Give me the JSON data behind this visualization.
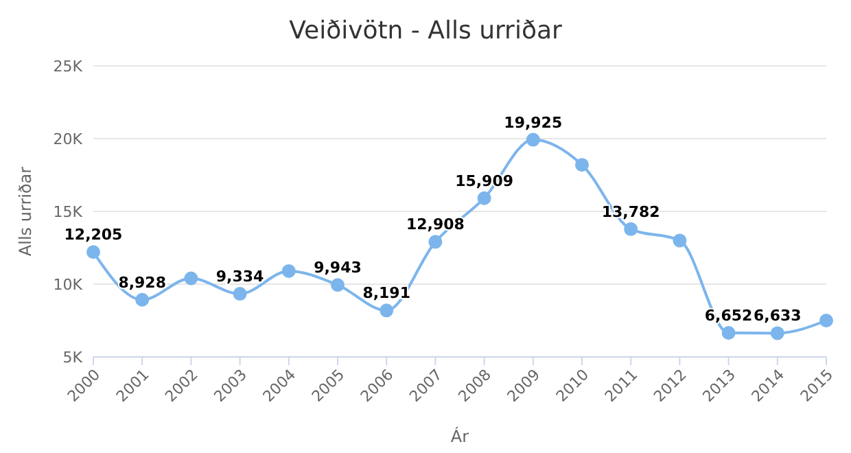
{
  "chart_data": {
    "type": "line",
    "title": "Veiðivötn - Alls urriðar",
    "xlabel": "Ár",
    "ylabel": "Alls urriðar",
    "categories": [
      "2000",
      "2001",
      "2002",
      "2003",
      "2004",
      "2005",
      "2006",
      "2007",
      "2008",
      "2009",
      "2010",
      "2011",
      "2012",
      "2013",
      "2014",
      "2015"
    ],
    "series": [
      {
        "color": "#7cb5ec",
        "values": [
          12205,
          8928,
          10400,
          9334,
          10900,
          9943,
          8191,
          12908,
          15909,
          19925,
          18200,
          13782,
          13000,
          6652,
          6633,
          7500
        ],
        "value_labels": [
          "12,205",
          "8,928",
          null,
          "9,334",
          null,
          "9,943",
          "8,191",
          "12,908",
          "15,909",
          "19,925",
          null,
          "13,782",
          null,
          "6,652",
          "6,633",
          null
        ]
      }
    ],
    "ylim": [
      5000,
      25000
    ],
    "yticks": [
      {
        "value": 5000,
        "label": "5K"
      },
      {
        "value": 10000,
        "label": "10K"
      },
      {
        "value": 15000,
        "label": "15K"
      },
      {
        "value": 20000,
        "label": "20K"
      },
      {
        "value": 25000,
        "label": "25K"
      }
    ],
    "grid": "y",
    "legend": false,
    "marker": "circle",
    "line_style": "solid"
  }
}
